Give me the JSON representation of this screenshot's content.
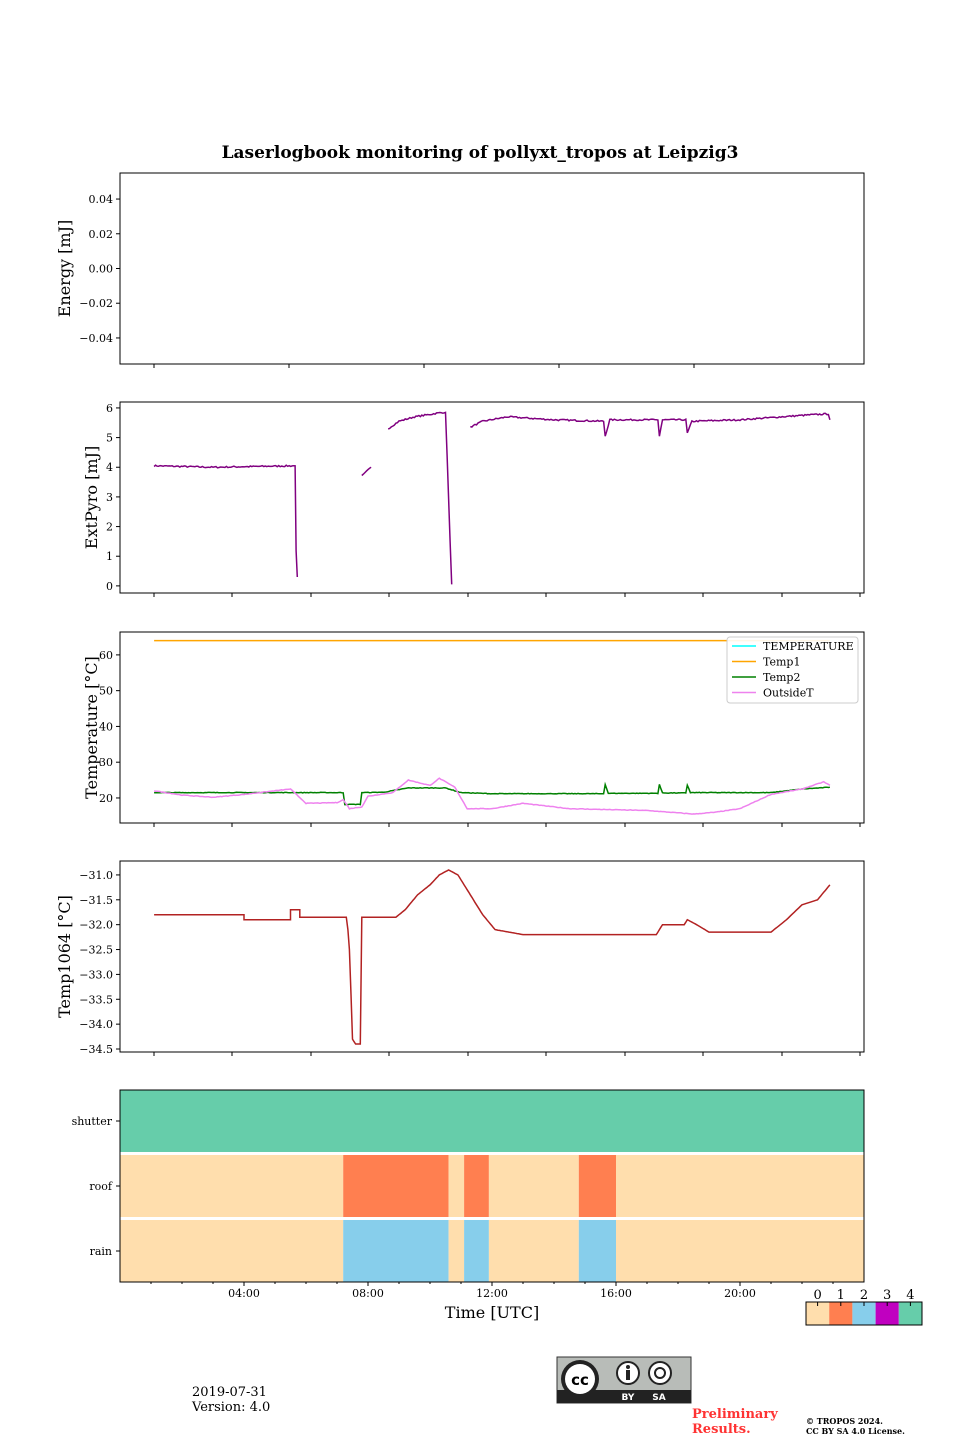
{
  "title": "Laserlogbook monitoring of pollyxt_tropos at Leipzig3",
  "footer": {
    "date": "2019-07-31",
    "version": "Version: 4.0",
    "preliminary_line1": "Preliminary",
    "preliminary_line2": "Results.",
    "copyright_line1": "© TROPOS 2024.",
    "copyright_line2": "CC BY SA 4.0 License.",
    "license_badge": {
      "cc": "cc",
      "by": "BY",
      "sa": "SA"
    }
  },
  "chart_data": [
    {
      "type": "line",
      "name": "energy",
      "ylabel": "Energy [mJ]",
      "ylim": [
        -0.055,
        0.055
      ],
      "yticks": [
        0.04,
        0.02,
        0.0,
        -0.02,
        -0.04
      ],
      "ytick_labels": [
        "0.04",
        "0.02",
        "0.00",
        "−0.02",
        "−0.04"
      ],
      "series": []
    },
    {
      "type": "line",
      "name": "extpyro",
      "ylabel": "ExtPyro [mJ]",
      "ylim": [
        -0.24,
        6.2
      ],
      "yticks": [
        0,
        1,
        2,
        3,
        4,
        5,
        6
      ],
      "ytick_labels": [
        "0",
        "1",
        "2",
        "3",
        "4",
        "5",
        "6"
      ],
      "series": [
        {
          "name": "ExtPyro",
          "color": "#800080",
          "segments": [
            [
              [
                1.1,
                4.05
              ],
              [
                3,
                4.0
              ],
              [
                5.65,
                4.05
              ],
              [
                5.68,
                1.2
              ],
              [
                5.72,
                0.3
              ]
            ],
            [
              [
                7.8,
                3.7
              ],
              [
                8.1,
                4.0
              ]
            ],
            [
              [
                8.65,
                5.3
              ],
              [
                9.0,
                5.55
              ],
              [
                9.5,
                5.7
              ],
              [
                10.4,
                5.85
              ],
              [
                10.5,
                5.85
              ],
              [
                10.7,
                0.05
              ]
            ],
            [
              [
                11.3,
                5.35
              ],
              [
                11.7,
                5.55
              ],
              [
                12.5,
                5.7
              ],
              [
                14,
                5.6
              ],
              [
                15.6,
                5.55
              ],
              [
                15.65,
                5.05
              ],
              [
                15.8,
                5.6
              ],
              [
                17.35,
                5.6
              ],
              [
                17.4,
                5.05
              ],
              [
                17.5,
                5.6
              ],
              [
                18.25,
                5.6
              ],
              [
                18.3,
                5.15
              ],
              [
                18.45,
                5.55
              ],
              [
                20,
                5.6
              ],
              [
                22.0,
                5.75
              ],
              [
                22.85,
                5.8
              ],
              [
                22.9,
                5.6
              ]
            ]
          ]
        }
      ]
    },
    {
      "type": "line",
      "name": "temperature",
      "ylabel": "Temperature [°C]",
      "ylim": [
        13.0,
        66.4
      ],
      "yticks": [
        20,
        30,
        40,
        50,
        60
      ],
      "ytick_labels": [
        "20",
        "30",
        "40",
        "50",
        "60"
      ],
      "legend_position": "top-right",
      "series": [
        {
          "name": "TEMPERATURE",
          "color": "#00ffff",
          "points": []
        },
        {
          "name": "Temp1",
          "color": "#ffa500",
          "points": [
            [
              1.1,
              64
            ],
            [
              22.9,
              64
            ]
          ]
        },
        {
          "name": "Temp2",
          "color": "#008000",
          "points": [
            [
              1.1,
              21.5
            ],
            [
              7.2,
              21.5
            ],
            [
              7.25,
              18.2
            ],
            [
              7.75,
              18.2
            ],
            [
              7.8,
              21.5
            ],
            [
              8.5,
              21.6
            ],
            [
              9.3,
              22.8
            ],
            [
              10.5,
              22.8
            ],
            [
              11,
              21.5
            ],
            [
              12,
              21.2
            ],
            [
              15.6,
              21.2
            ],
            [
              15.65,
              23.8
            ],
            [
              15.75,
              21.3
            ],
            [
              17.35,
              21.3
            ],
            [
              17.4,
              23.8
            ],
            [
              17.5,
              21.4
            ],
            [
              18.25,
              21.4
            ],
            [
              18.3,
              23.6
            ],
            [
              18.4,
              21.5
            ],
            [
              21,
              21.5
            ],
            [
              22,
              22.5
            ],
            [
              22.9,
              23
            ]
          ]
        },
        {
          "name": "OutsideT",
          "color": "#ee82ee",
          "points": [
            [
              1.1,
              22
            ],
            [
              2,
              20.8
            ],
            [
              3,
              20.2
            ],
            [
              4,
              21
            ],
            [
              5.5,
              22.5
            ],
            [
              6,
              18.5
            ],
            [
              7.0,
              18.7
            ],
            [
              7.2,
              19.5
            ],
            [
              7.4,
              17
            ],
            [
              7.8,
              17.5
            ],
            [
              8.0,
              20.5
            ],
            [
              8.8,
              21.5
            ],
            [
              9.3,
              25
            ],
            [
              10,
              23.5
            ],
            [
              10.3,
              25.5
            ],
            [
              10.8,
              23
            ],
            [
              11.2,
              17
            ],
            [
              12,
              17
            ],
            [
              13,
              18.5
            ],
            [
              14.5,
              17
            ],
            [
              17,
              16.5
            ],
            [
              18.5,
              15.5
            ],
            [
              19.2,
              16
            ],
            [
              20,
              17
            ],
            [
              21,
              21
            ],
            [
              22,
              22.5
            ],
            [
              22.7,
              24.5
            ],
            [
              22.9,
              23.5
            ]
          ]
        }
      ]
    },
    {
      "type": "line",
      "name": "temp1064",
      "ylabel": "Temp1064 [°C]",
      "ylim": [
        -34.56,
        -30.72
      ],
      "yticks": [
        -31,
        -31.5,
        -32,
        -32.5,
        -33,
        -33.5,
        -34,
        -34.5
      ],
      "ytick_labels": [
        "−31.0",
        "−31.5",
        "−32.0",
        "−32.5",
        "−33.0",
        "−33.5",
        "−34.0",
        "−34.5"
      ],
      "series": [
        {
          "name": "Temp1064",
          "color": "#b22222",
          "points": [
            [
              1.1,
              -31.8
            ],
            [
              4,
              -31.8
            ],
            [
              4,
              -31.9
            ],
            [
              5.5,
              -31.9
            ],
            [
              5.5,
              -31.7
            ],
            [
              5.8,
              -31.7
            ],
            [
              5.8,
              -31.85
            ],
            [
              7.3,
              -31.85
            ],
            [
              7.35,
              -32.1
            ],
            [
              7.4,
              -32.5
            ],
            [
              7.5,
              -34.3
            ],
            [
              7.6,
              -34.4
            ],
            [
              7.75,
              -34.4
            ],
            [
              7.8,
              -31.85
            ],
            [
              8.9,
              -31.85
            ],
            [
              9.2,
              -31.7
            ],
            [
              9.6,
              -31.4
            ],
            [
              10.0,
              -31.2
            ],
            [
              10.3,
              -31.0
            ],
            [
              10.6,
              -30.9
            ],
            [
              10.9,
              -31.0
            ],
            [
              11.3,
              -31.4
            ],
            [
              11.7,
              -31.8
            ],
            [
              12.1,
              -32.1
            ],
            [
              13,
              -32.2
            ],
            [
              16,
              -32.2
            ],
            [
              17.3,
              -32.2
            ],
            [
              17.5,
              -32.0
            ],
            [
              18.2,
              -32.0
            ],
            [
              18.3,
              -31.9
            ],
            [
              18.6,
              -32.0
            ],
            [
              19,
              -32.15
            ],
            [
              21,
              -32.15
            ],
            [
              21.5,
              -31.9
            ],
            [
              22,
              -31.6
            ],
            [
              22.5,
              -31.5
            ],
            [
              22.9,
              -31.2
            ]
          ]
        }
      ]
    },
    {
      "type": "heatmap",
      "name": "status",
      "rows": [
        "shutter",
        "roof",
        "rain"
      ],
      "xlabel": "Time [UTC]",
      "xlim_hours": [
        0,
        24
      ],
      "xtick_labels": [
        "04:00",
        "08:00",
        "12:00",
        "16:00",
        "20:00"
      ],
      "xticks_hours": [
        4,
        8,
        12,
        16,
        20
      ],
      "intervals": {
        "shutter": [
          [
            0,
            24,
            4
          ]
        ],
        "roof": [
          [
            0,
            7.2,
            0
          ],
          [
            7.2,
            10.6,
            1
          ],
          [
            10.6,
            11.1,
            0
          ],
          [
            11.1,
            11.9,
            1
          ],
          [
            11.9,
            14.8,
            0
          ],
          [
            14.8,
            16.0,
            1
          ],
          [
            16.0,
            24,
            0
          ]
        ],
        "rain": [
          [
            0,
            7.2,
            0
          ],
          [
            7.2,
            10.6,
            2
          ],
          [
            10.6,
            11.1,
            0
          ],
          [
            11.1,
            11.9,
            2
          ],
          [
            11.9,
            14.8,
            0
          ],
          [
            14.8,
            16.0,
            2
          ],
          [
            16.0,
            24,
            0
          ]
        ]
      },
      "colorbar": {
        "labels": [
          "0",
          "1",
          "2",
          "3",
          "4"
        ],
        "colors": [
          "#ffdead",
          "#ff7f50",
          "#87ceeb",
          "#c000c0",
          "#66cdaa"
        ]
      }
    }
  ]
}
